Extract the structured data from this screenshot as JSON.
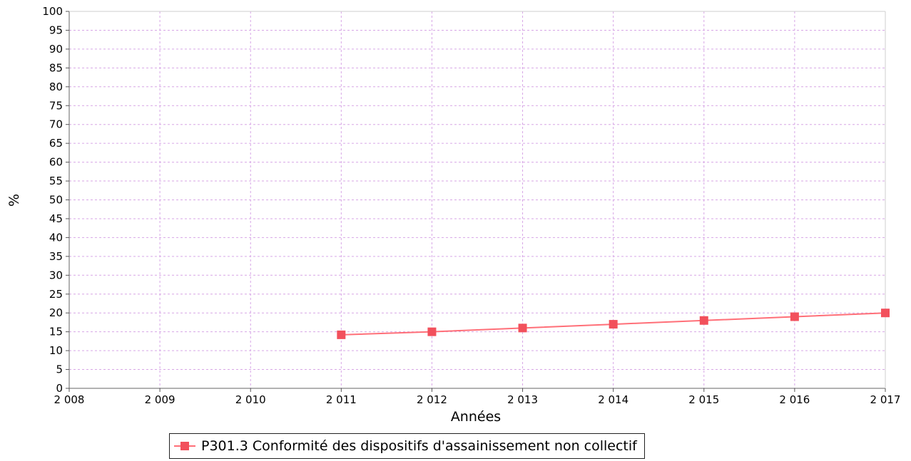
{
  "chart_data": {
    "type": "line",
    "xlabel": "Années",
    "ylabel": "%",
    "xlim": [
      2008,
      2017
    ],
    "ylim": [
      0,
      100
    ],
    "x_ticks": [
      "2 008",
      "2 009",
      "2 010",
      "2 011",
      "2 012",
      "2 013",
      "2 014",
      "2 015",
      "2 016",
      "2 017"
    ],
    "y_ticks": [
      "0",
      "5",
      "10",
      "15",
      "20",
      "25",
      "30",
      "35",
      "40",
      "45",
      "50",
      "55",
      "60",
      "65",
      "70",
      "75",
      "80",
      "85",
      "90",
      "95",
      "100"
    ],
    "grid": true,
    "legend_position": "bottom",
    "series": [
      {
        "name": "P301.3 Conformité des dispositifs d'assainissement non collectif",
        "color": "#ff6f78",
        "marker": "square",
        "x": [
          2011,
          2012,
          2013,
          2014,
          2015,
          2016,
          2017
        ],
        "y": [
          14.2,
          15,
          16,
          17,
          18,
          19,
          20
        ]
      }
    ]
  }
}
